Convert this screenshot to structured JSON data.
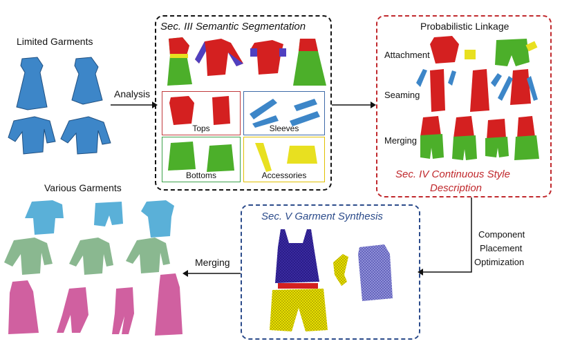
{
  "labels": {
    "limited_garments": "Limited Garments",
    "analysis": "Analysis",
    "sec3_title": "Sec. III  Semantic Segmentation",
    "tops": "Tops",
    "sleeves": "Sleeves",
    "bottoms": "Bottoms",
    "accessories": "Accessories",
    "probabilistic_linkage": "Probabilistic  Linkage",
    "attachment": "Attachment",
    "seaming": "Seaming",
    "merging_right": "Merging",
    "sec4_line1": "Sec. IV  Continuous Style",
    "sec4_line2": "Description",
    "component": "Component",
    "placement": "Placement",
    "optimization": "Optimization",
    "sec5_title": "Sec. V  Garment Synthesis",
    "merging_bottom": "Merging",
    "various_garments": "Various Garments"
  },
  "colors": {
    "sec3_border": "#111111",
    "sec4_border": "#c0282c",
    "sec5_border": "#2a4a8a",
    "tops_box": "#c0393b",
    "sleeves_box": "#3d6aa8",
    "bottoms_box": "#3aa14a",
    "accessories_box": "#e0c000",
    "garment_blue": "#3d86c8",
    "garment_red": "#d42020",
    "garment_green": "#4caf2a",
    "garment_yellow": "#e8e020",
    "mesh_purple": "#3a2aa0",
    "mesh_yellow": "#e8e000",
    "light_blue": "#5ab0d8",
    "sage_green": "#8ab890",
    "pink": "#d060a0"
  }
}
